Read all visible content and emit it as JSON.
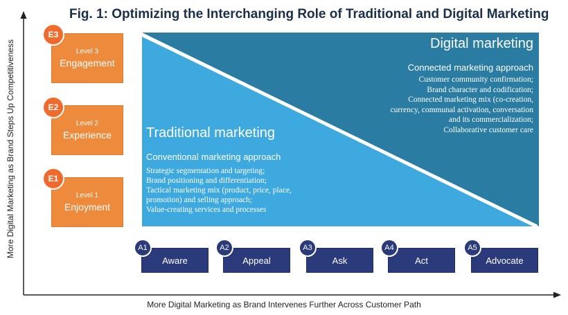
{
  "figure": {
    "title": "Fig. 1: Optimizing the Interchanging Role of Traditional and Digital Marketing",
    "y_axis_label": "More Digital Marketing as Brand Steps Up Competitiveness",
    "x_axis_label": "More Digital Marketing as Brand Intervenes Further Across Customer Path"
  },
  "levels": [
    {
      "code": "E3",
      "level": "Level 3",
      "name": "Engagement"
    },
    {
      "code": "E2",
      "level": "Level 2",
      "name": "Experience"
    },
    {
      "code": "E1",
      "level": "Level 1",
      "name": "Enjoyment"
    }
  ],
  "digital": {
    "title": "Digital marketing",
    "subtitle": "Connected marketing approach",
    "items": [
      "Customer community confirmation;",
      "Brand character and codification;",
      "Connected marketing mix (co-creation,",
      "currency, communal activation, conversation",
      "and its commercialization;",
      "Collaborative customer care"
    ]
  },
  "traditional": {
    "title": "Traditional marketing",
    "subtitle": "Conventional marketing approach",
    "items": [
      "Strategic segmentation and targeting;",
      "Brand positioning and differentiation;",
      "Tactical marketing mix (product, price, place,",
      "promotion) and selling approach;",
      "Value-creating services and processes"
    ]
  },
  "stages": [
    {
      "code": "A1",
      "label": "Aware"
    },
    {
      "code": "A2",
      "label": "Appeal"
    },
    {
      "code": "A3",
      "label": "Ask"
    },
    {
      "code": "A4",
      "label": "Act"
    },
    {
      "code": "A5",
      "label": "Advocate"
    }
  ],
  "colors": {
    "digital": "#2a7ca3",
    "traditional": "#3ea9df",
    "level_box": "#ee8a3c",
    "stage_box": "#2b3a7a"
  }
}
